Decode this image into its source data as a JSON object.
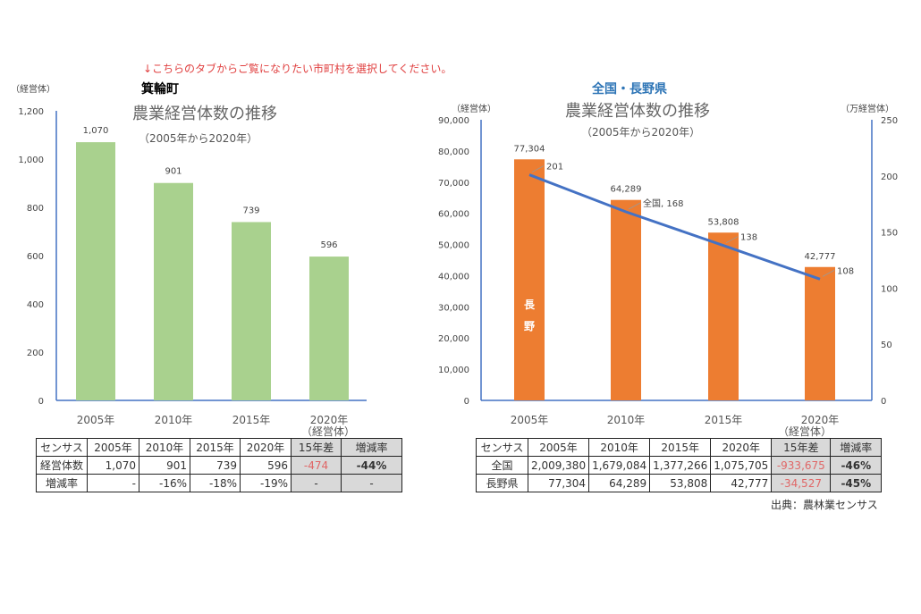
{
  "notice": "↓こちらのタブからご覧になりたい市町村を選択してください。",
  "source": "出典：農林業センサス",
  "colors": {
    "left_bar": "#a9d18e",
    "right_bar": "#ed7d31",
    "line": "#4472c4",
    "axis": "#4472c4",
    "notice": "#e04040",
    "negative": "#e06666"
  },
  "chart_data": [
    {
      "type": "bar",
      "region": "箕輪町",
      "title": "農業経営体数の推移",
      "subtitle": "（2005年から2020年）",
      "ylabel": "（経営体）",
      "xlabel": "（経営体）",
      "ylim": [
        0,
        1200
      ],
      "yticks": [
        "0",
        "200",
        "400",
        "600",
        "800",
        "1,000",
        "1,200"
      ],
      "categories": [
        "2005年",
        "2010年",
        "2015年",
        "2020年"
      ],
      "values": [
        1070,
        901,
        739,
        596
      ],
      "data_labels": [
        "1,070",
        "901",
        "739",
        "596"
      ],
      "grid": false
    },
    {
      "type": "bar+line",
      "region": "全国・長野県",
      "title": "農業経営体数の推移",
      "subtitle": "（2005年から2020年）",
      "ylabel": "（経営体）",
      "y2label": "（万経営体）",
      "xlabel": "（経営体）",
      "ylim": [
        0,
        90000
      ],
      "y2lim": [
        0,
        250
      ],
      "yticks": [
        "0",
        "10,000",
        "20,000",
        "30,000",
        "40,000",
        "50,000",
        "60,000",
        "70,000",
        "80,000",
        "90,000"
      ],
      "y2ticks": [
        "0",
        "50",
        "100",
        "150",
        "200",
        "250"
      ],
      "categories": [
        "2005年",
        "2010年",
        "2015年",
        "2020年"
      ],
      "bar_series": {
        "name": "長野",
        "values": [
          77304,
          64289,
          53808,
          42777
        ],
        "data_labels": [
          "77,304",
          "64,289",
          "53,808",
          "42,777"
        ]
      },
      "line_series": {
        "name": "全国",
        "values": [
          201,
          168,
          138,
          108
        ],
        "data_labels": [
          "201",
          "全国, 168",
          "138",
          "108"
        ]
      },
      "grid": false
    }
  ],
  "left_table": {
    "header": [
      "センサス",
      "2005年",
      "2010年",
      "2015年",
      "2020年",
      "15年差",
      "増減率"
    ],
    "rows": [
      [
        "経営体数",
        "1,070",
        "901",
        "739",
        "596",
        "-474",
        "-44%"
      ],
      [
        "増減率",
        "-",
        "-16%",
        "-18%",
        "-19%",
        "-",
        "-"
      ]
    ]
  },
  "right_table": {
    "header": [
      "センサス",
      "2005年",
      "2010年",
      "2015年",
      "2020年",
      "15年差",
      "増減率"
    ],
    "rows": [
      [
        "全国",
        "2,009,380",
        "1,679,084",
        "1,377,266",
        "1,075,705",
        "-933,675",
        "-46%"
      ],
      [
        "長野県",
        "77,304",
        "64,289",
        "53,808",
        "42,777",
        "-34,527",
        "-45%"
      ]
    ]
  }
}
